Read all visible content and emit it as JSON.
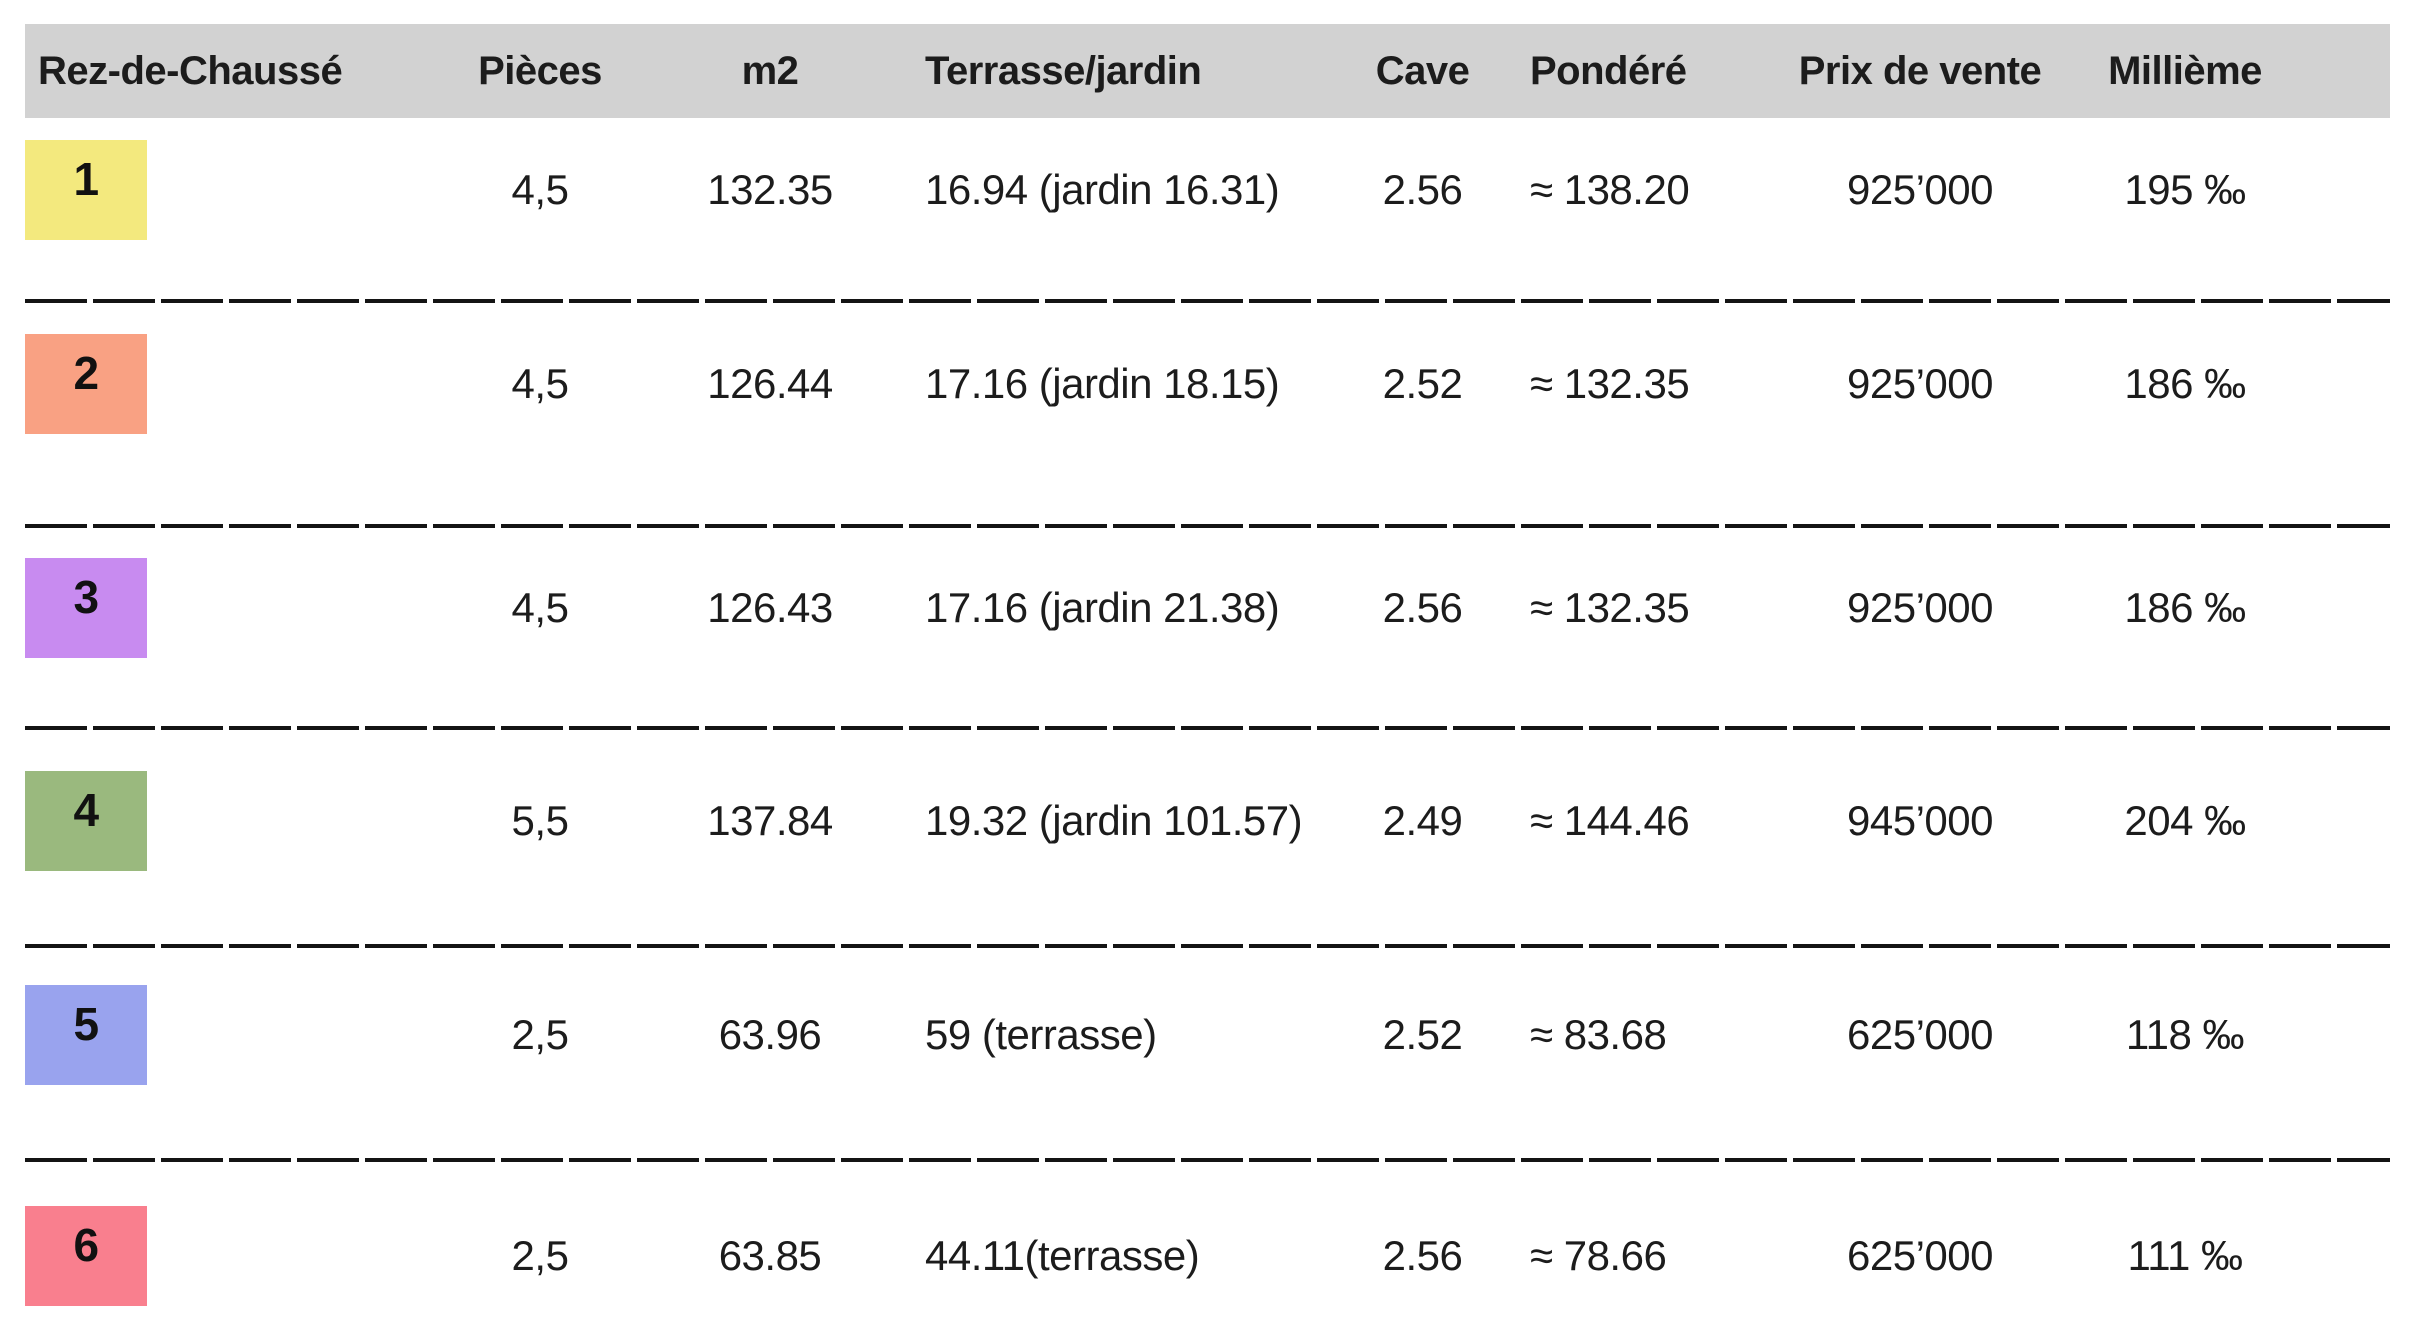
{
  "header": {
    "columns": {
      "label": "Rez-de-Chaussé",
      "pieces": "Pièces",
      "m2": "m2",
      "terrasse": "Terrasse/jardin",
      "cave": "Cave",
      "pondere": "Pondéré",
      "prix": "Prix de vente",
      "millieme": "Millième"
    }
  },
  "table": {
    "rows": [
      {
        "num": "1",
        "badge_color": "#F3E97E",
        "pieces": "4,5",
        "m2": "132.35",
        "terrasse": "16.94 (jardin 16.31)",
        "cave": "2.56",
        "pondere": "≈ 138.20",
        "prix": "925’000",
        "millieme": "195 ‰"
      },
      {
        "num": "2",
        "badge_color": "#F9A183",
        "pieces": "4,5",
        "m2": "126.44",
        "terrasse": "17.16 (jardin 18.15)",
        "cave": "2.52",
        "pondere": "≈ 132.35",
        "prix": "925’000",
        "millieme": "186 ‰"
      },
      {
        "num": "3",
        "badge_color": "#C88BF0",
        "pieces": "4,5",
        "m2": "126.43",
        "terrasse": "17.16 (jardin 21.38)",
        "cave": "2.56",
        "pondere": "≈ 132.35",
        "prix": "925’000",
        "millieme": "186 ‰"
      },
      {
        "num": "4",
        "badge_color": "#9AB97E",
        "pieces": "5,5",
        "m2": "137.84",
        "terrasse": "19.32 (jardin 101.57)",
        "cave": "2.49",
        "pondere": "≈ 144.46",
        "prix": "945’000",
        "millieme": "204 ‰"
      },
      {
        "num": "5",
        "badge_color": "#99A3EE",
        "pieces": "2,5",
        "m2": "63.96",
        "terrasse": "59 (terrasse)",
        "cave": "2.52",
        "pondere": "≈ 83.68",
        "prix": "625’000",
        "millieme": "118 ‰"
      },
      {
        "num": "6",
        "badge_color": "#F97F8E",
        "pieces": "2,5",
        "m2": "63.85",
        "terrasse": "44.11(terrasse)",
        "cave": "2.56",
        "pondere": "≈ 78.66",
        "prix": "625’000",
        "millieme": "111 ‰"
      }
    ]
  },
  "colors": {
    "header_bg": "#D2D2D2",
    "divider": "#141414",
    "text": "#1C1C1C"
  }
}
